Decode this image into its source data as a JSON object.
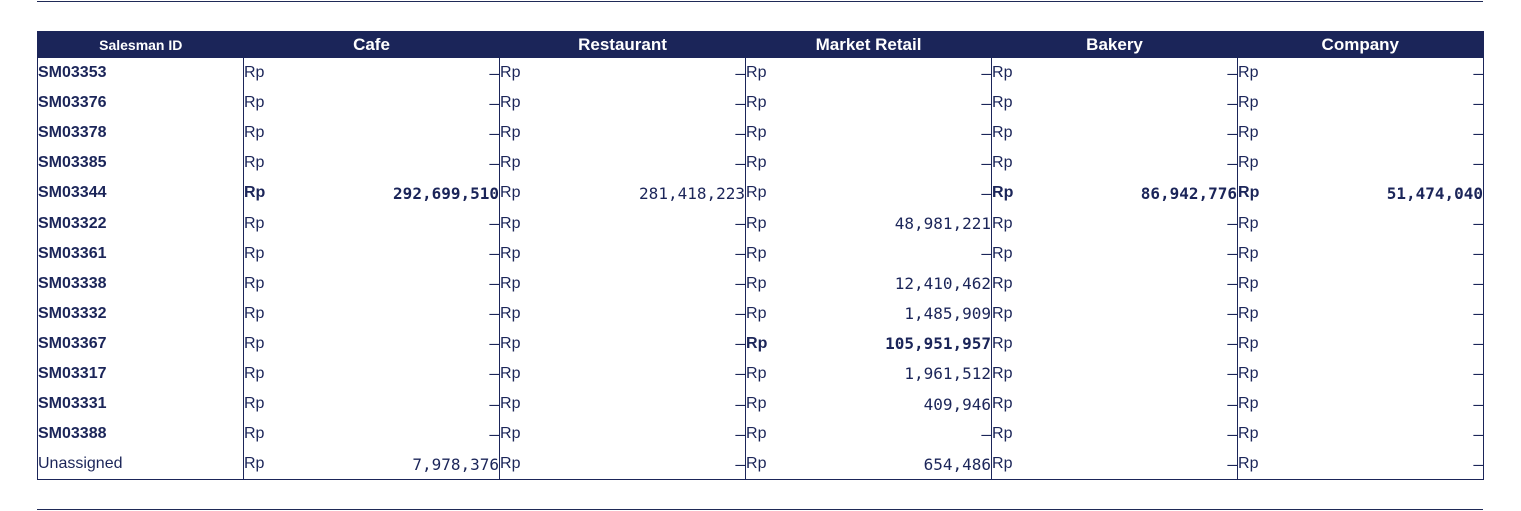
{
  "table": {
    "id_header": "Salesman ID",
    "columns": [
      "Cafe",
      "Restaurant",
      "Market Retail",
      "Bakery",
      "Company"
    ],
    "currency": "Rp",
    "empty_mark": "–",
    "rows": [
      {
        "id": "SM03353",
        "id_bold": true,
        "cells": [
          {
            "v": "–"
          },
          {
            "v": "–"
          },
          {
            "v": "–"
          },
          {
            "v": "–"
          },
          {
            "v": "–"
          }
        ]
      },
      {
        "id": "SM03376",
        "id_bold": true,
        "cells": [
          {
            "v": "–"
          },
          {
            "v": "–"
          },
          {
            "v": "–"
          },
          {
            "v": "–"
          },
          {
            "v": "–"
          }
        ]
      },
      {
        "id": "SM03378",
        "id_bold": true,
        "cells": [
          {
            "v": "–"
          },
          {
            "v": "–"
          },
          {
            "v": "–"
          },
          {
            "v": "–"
          },
          {
            "v": "–"
          }
        ]
      },
      {
        "id": "SM03385",
        "id_bold": true,
        "cells": [
          {
            "v": "–"
          },
          {
            "v": "–"
          },
          {
            "v": "–"
          },
          {
            "v": "–"
          },
          {
            "v": "–"
          }
        ]
      },
      {
        "id": "SM03344",
        "id_bold": true,
        "cells": [
          {
            "v": "292,699,510",
            "bold": true
          },
          {
            "v": "281,418,223"
          },
          {
            "v": "–"
          },
          {
            "v": "86,942,776",
            "bold": true
          },
          {
            "v": "51,474,040",
            "bold": true
          }
        ]
      },
      {
        "id": "SM03322",
        "id_bold": true,
        "cells": [
          {
            "v": "–"
          },
          {
            "v": "–"
          },
          {
            "v": "48,981,221"
          },
          {
            "v": "–"
          },
          {
            "v": "–"
          }
        ]
      },
      {
        "id": "SM03361",
        "id_bold": true,
        "cells": [
          {
            "v": "–"
          },
          {
            "v": "–"
          },
          {
            "v": "–"
          },
          {
            "v": "–"
          },
          {
            "v": "–"
          }
        ]
      },
      {
        "id": "SM03338",
        "id_bold": true,
        "cells": [
          {
            "v": "–"
          },
          {
            "v": "–"
          },
          {
            "v": "12,410,462"
          },
          {
            "v": "–"
          },
          {
            "v": "–"
          }
        ]
      },
      {
        "id": "SM03332",
        "id_bold": true,
        "cells": [
          {
            "v": "–"
          },
          {
            "v": "–"
          },
          {
            "v": "1,485,909"
          },
          {
            "v": "–"
          },
          {
            "v": "–"
          }
        ]
      },
      {
        "id": "SM03367",
        "id_bold": true,
        "cells": [
          {
            "v": "–"
          },
          {
            "v": "–"
          },
          {
            "v": "105,951,957",
            "bold": true
          },
          {
            "v": "–"
          },
          {
            "v": "–"
          }
        ]
      },
      {
        "id": "SM03317",
        "id_bold": true,
        "cells": [
          {
            "v": "–"
          },
          {
            "v": "–"
          },
          {
            "v": "1,961,512"
          },
          {
            "v": "–"
          },
          {
            "v": "–"
          }
        ]
      },
      {
        "id": "SM03331",
        "id_bold": true,
        "cells": [
          {
            "v": "–"
          },
          {
            "v": "–"
          },
          {
            "v": "409,946"
          },
          {
            "v": "–"
          },
          {
            "v": "–"
          }
        ]
      },
      {
        "id": "SM03388",
        "id_bold": true,
        "cells": [
          {
            "v": "–"
          },
          {
            "v": "–"
          },
          {
            "v": "–"
          },
          {
            "v": "–"
          },
          {
            "v": "–"
          }
        ]
      },
      {
        "id": "Unassigned",
        "id_bold": false,
        "cells": [
          {
            "v": "7,978,376"
          },
          {
            "v": "–"
          },
          {
            "v": "654,486"
          },
          {
            "v": "–"
          },
          {
            "v": "–"
          }
        ]
      }
    ]
  },
  "colors": {
    "header_bg": "#1b2559",
    "header_text": "#ffffff",
    "text": "#1b2559"
  }
}
